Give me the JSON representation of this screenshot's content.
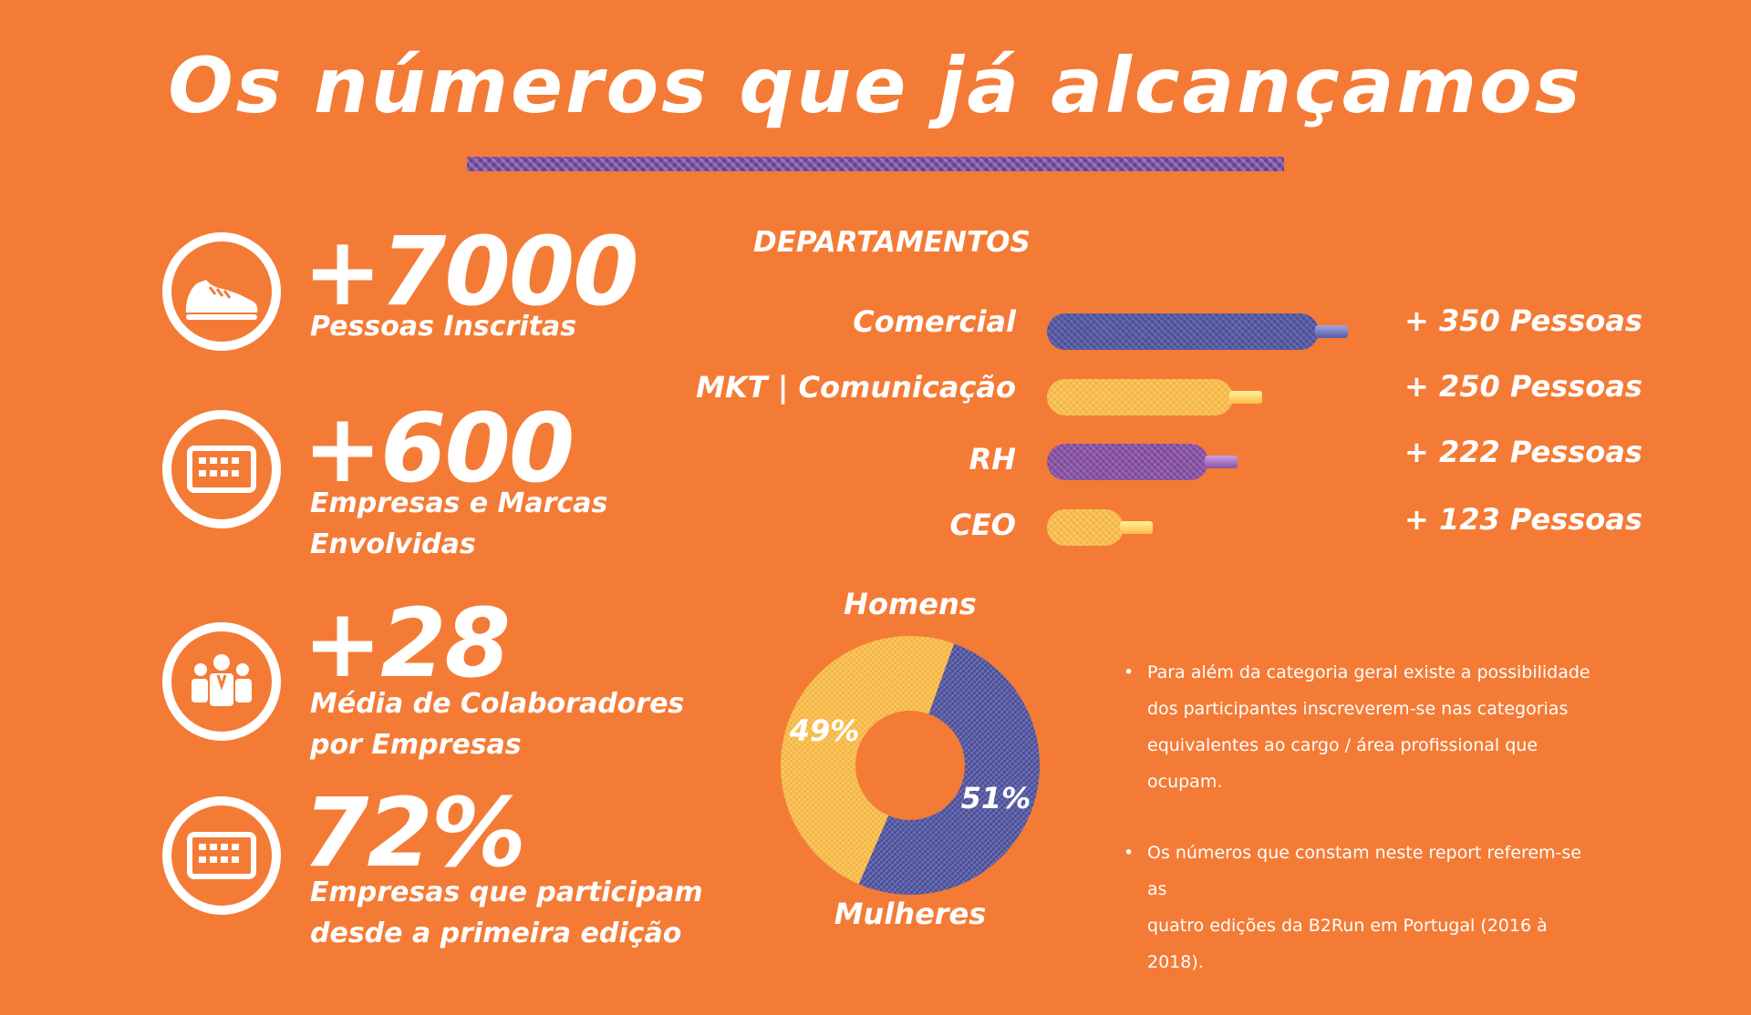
{
  "title": "Os números que já alcançamos",
  "colors": {
    "background": "#F47B36",
    "blue": "#5559A6",
    "yellow": "#F9BD4A",
    "purple": "#8A52A8",
    "white": "#FFFFFF"
  },
  "stats": [
    {
      "icon": "sneaker-icon",
      "value": "+7000",
      "label_lines": [
        "Pessoas Inscritas"
      ]
    },
    {
      "icon": "building-icon",
      "value": "+600",
      "label_lines": [
        "Empresas e Marcas",
        "Envolvidas"
      ]
    },
    {
      "icon": "team-icon",
      "value": "+28",
      "label_lines": [
        "Média de Colaboradores",
        "por Empresas"
      ]
    },
    {
      "icon": "building-icon",
      "value": "72%",
      "label_lines": [
        "Empresas que participam",
        "desde a primeira edição"
      ]
    }
  ],
  "notes": [
    {
      "bullet": "•",
      "lines": [
        "Para além da categoria geral existe a possibilidade",
        "dos  participantes inscreverem-se nas categorias",
        "equivalentes ao cargo / área profissional que",
        "ocupam."
      ]
    },
    {
      "bullet": "•",
      "lines": [
        "Os números que constam neste report referem-se as",
        "quatro edições da B2Run em Portugal (2016 à 2018)."
      ]
    }
  ],
  "chart_data": [
    {
      "type": "bar",
      "orientation": "horizontal",
      "title": "DEPARTAMENTOS",
      "categories": [
        "Comercial",
        "MKT | Comunicação",
        "RH",
        "CEO"
      ],
      "values": [
        350,
        250,
        222,
        123
      ],
      "value_labels": [
        "+ 350 Pessoas",
        "+ 250 Pessoas",
        "+ 222 Pessoas",
        "+ 123 Pessoas"
      ],
      "colors": [
        "#5559A6",
        "#F9BD4A",
        "#8A52A8",
        "#F9BD4A"
      ],
      "grid": false
    },
    {
      "type": "pie",
      "style": "donut",
      "categories": [
        "Homens",
        "Mulheres"
      ],
      "values": [
        51,
        49
      ],
      "value_labels": [
        "51%",
        "49%"
      ],
      "colors": [
        "#5559A6",
        "#F9BD4A"
      ]
    }
  ]
}
